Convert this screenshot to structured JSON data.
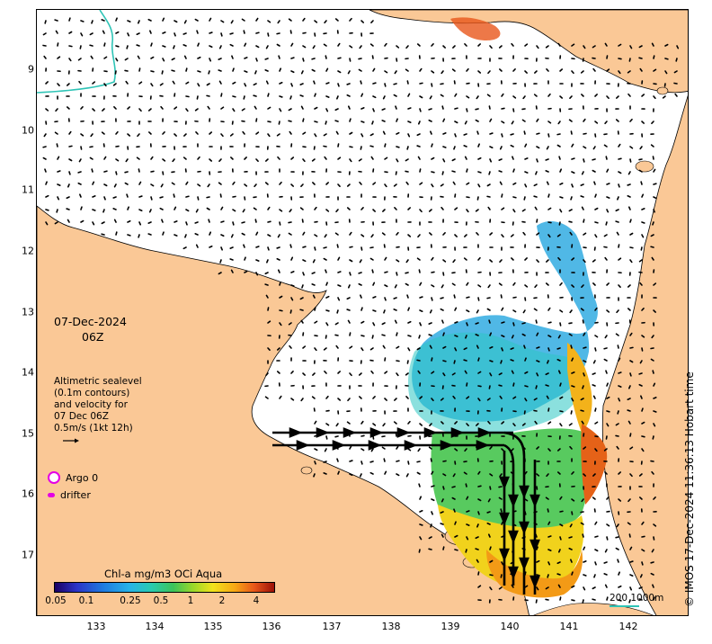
{
  "map": {
    "date_line": "07-Dec-2024",
    "hour_line": "06Z",
    "info_lines": [
      "Altimetric sealevel",
      "(0.1m contours)",
      "and velocity for",
      "07 Dec 06Z",
      "0.5m/s (1kt 12h)"
    ],
    "argo_label": "Argo 0",
    "drifter_label": "drifter",
    "colorbar_title": "Chl-a mg/m3 OCi Aqua",
    "colorbar_ticks": [
      "0.05",
      "0.1",
      "0.25",
      "0.5",
      "1",
      "2",
      "4"
    ],
    "scale_label": "200  1000m",
    "credit": "© IMOS 17-Dec-2024 11:36:13 Hobart time",
    "x_ticks": [
      "133",
      "134",
      "135",
      "136",
      "137",
      "138",
      "139",
      "140",
      "141",
      "142"
    ],
    "y_ticks": [
      "9",
      "10",
      "11",
      "12",
      "13",
      "14",
      "15",
      "16",
      "17"
    ],
    "colors": {
      "land": "#fac896",
      "ocean": "#ffffff",
      "coast": "#000000",
      "bathy": "#2ec4b6",
      "argo": "#e400e4"
    }
  }
}
